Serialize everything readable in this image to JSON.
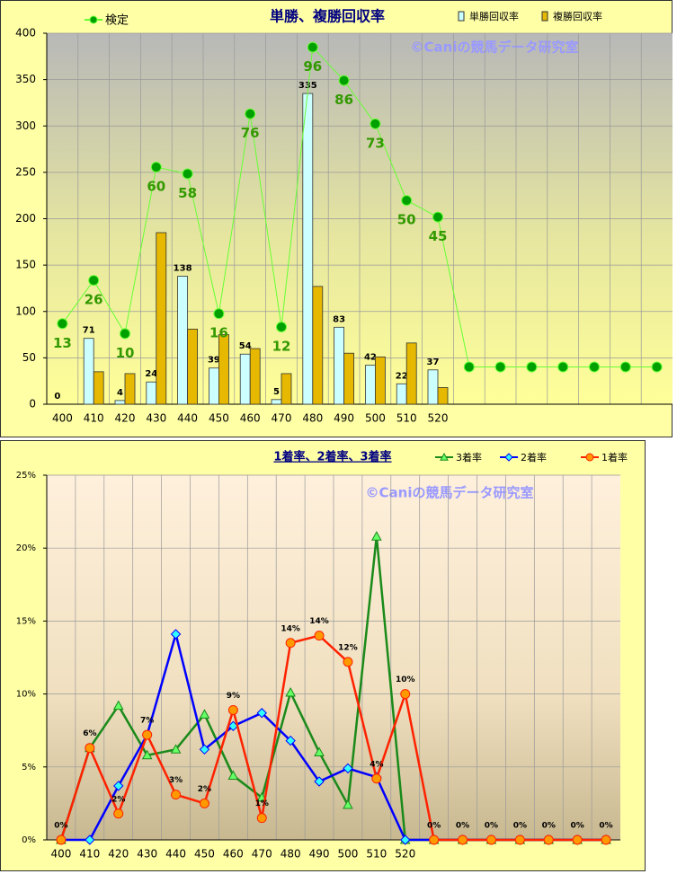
{
  "chart_data": [
    {
      "type": "bar",
      "title": "単勝、複勝回収率",
      "annotation": "©Caniの競馬データ研究室",
      "categories": [
        "400",
        "410",
        "420",
        "430",
        "440",
        "450",
        "460",
        "470",
        "480",
        "490",
        "500",
        "510",
        "520",
        null,
        null,
        null,
        null,
        null,
        null,
        null
      ],
      "ylim": [
        0,
        400
      ],
      "yticks": [
        0,
        50,
        100,
        150,
        200,
        250,
        300,
        350,
        400
      ],
      "y2lim": [
        -11.2,
        100.2
      ],
      "grid": true,
      "series": [
        {
          "name": "検定",
          "type": "line",
          "axis": "y2",
          "color": "#00a000",
          "line_color": "#66ff33",
          "marker": "circle",
          "values": [
            13,
            26,
            10,
            60,
            58,
            16,
            76,
            12,
            96,
            86,
            73,
            50,
            45,
            0,
            0,
            0,
            0,
            0,
            0,
            0
          ],
          "value_labels": [
            "13",
            "26",
            "10",
            "60",
            "58",
            "16",
            "76",
            "12",
            "96",
            "86",
            "73",
            "50",
            "45",
            null,
            null,
            null,
            null,
            null,
            null,
            null
          ]
        },
        {
          "name": "単勝回収率",
          "type": "bar",
          "color": "#ccffff",
          "data_labels": true,
          "values": [
            0,
            71,
            4,
            24,
            138,
            39,
            54,
            5,
            335,
            83,
            42,
            22,
            37,
            null,
            null,
            null,
            null,
            null,
            null,
            null
          ]
        },
        {
          "name": "複勝回収率",
          "type": "bar",
          "color": "#e6b800",
          "values": [
            0,
            35,
            33,
            185,
            81,
            75,
            60,
            33,
            127,
            55,
            51,
            66,
            18,
            null,
            null,
            null,
            null,
            null,
            null,
            null
          ]
        }
      ]
    },
    {
      "type": "line",
      "title": "1着率、2着率、3着率",
      "annotation": "©Caniの競馬データ研究室",
      "categories": [
        "400",
        "410",
        "420",
        "430",
        "440",
        "450",
        "460",
        "470",
        "480",
        "490",
        "500",
        "510",
        "520",
        null,
        null,
        null,
        null,
        null,
        null,
        null
      ],
      "ylim": [
        0,
        25
      ],
      "yticks": [
        {
          "value": 0,
          "label": "0%"
        },
        {
          "value": 5,
          "label": "5%"
        },
        {
          "value": 10,
          "label": "10%"
        },
        {
          "value": 15,
          "label": "15%"
        },
        {
          "value": 20,
          "label": "20%"
        },
        {
          "value": 25,
          "label": "25%"
        }
      ],
      "grid": true,
      "series": [
        {
          "name": "3着率",
          "color": "#1a8a1a",
          "marker_fill": "#66ff66",
          "marker": "triangle",
          "values": [
            0,
            6.3,
            9.2,
            5.8,
            6.2,
            8.6,
            4.4,
            2.9,
            10.1,
            6.0,
            2.4,
            20.8,
            0,
            0,
            0,
            0,
            0,
            0,
            0,
            0
          ]
        },
        {
          "name": "2着率",
          "color": "#0000ff",
          "marker_fill": "#33ffff",
          "marker": "diamond",
          "values": [
            0,
            0,
            3.7,
            7.2,
            14.1,
            6.2,
            7.8,
            8.7,
            6.8,
            4.0,
            4.9,
            4.3,
            0,
            0,
            0,
            0,
            0,
            0,
            0,
            0
          ]
        },
        {
          "name": "1着率",
          "color": "#ff2200",
          "marker_fill": "#ff9900",
          "marker": "circle",
          "values": [
            0,
            6.3,
            1.8,
            7.2,
            3.1,
            2.5,
            8.9,
            1.5,
            13.5,
            14.0,
            12.2,
            4.2,
            10.0,
            0,
            0,
            0,
            0,
            0,
            0,
            0
          ],
          "value_labels": [
            "0%",
            "6%",
            "2%",
            "7%",
            "3%",
            "2%",
            "9%",
            "1%",
            "14%",
            "14%",
            "12%",
            "4%",
            "10%",
            "0%",
            "0%",
            "0%",
            "0%",
            "0%",
            "0%",
            "0%"
          ]
        }
      ]
    }
  ]
}
